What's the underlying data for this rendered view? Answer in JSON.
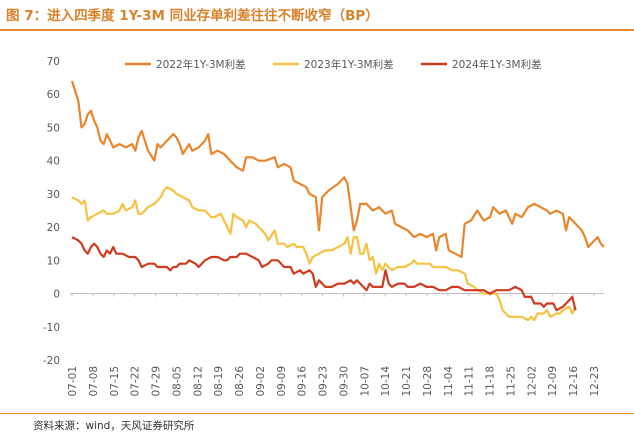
{
  "title": "图 7：进入四季度 1Y-3M 同业存单利差往往不断收窄（BP）",
  "source": "资料来源：wind，天风证券研究所",
  "chart_data": {
    "type": "line",
    "title": "图 7：进入四季度 1Y-3M 同业存单利差往往不断收窄（BP）",
    "xlabel": "",
    "ylabel": "",
    "ylim": [
      -20,
      70
    ],
    "yticks": [
      -20,
      -10,
      0,
      10,
      20,
      30,
      40,
      50,
      60,
      70
    ],
    "x_tick_labels": [
      "07-01",
      "07-08",
      "07-15",
      "07-22",
      "07-29",
      "08-05",
      "08-12",
      "08-19",
      "08-26",
      "09-02",
      "09-09",
      "09-16",
      "09-23",
      "09-30",
      "10-07",
      "10-14",
      "10-21",
      "10-28",
      "11-04",
      "11-11",
      "11-18",
      "11-25",
      "12-02",
      "12-09",
      "12-16",
      "12-23"
    ],
    "legend_position": "top",
    "grid": false,
    "series": [
      {
        "name": "2022年1Y-3M利差",
        "color": "#e9852b",
        "points": [
          [
            0,
            64
          ],
          [
            2,
            58
          ],
          [
            3,
            50
          ],
          [
            4,
            51
          ],
          [
            5,
            54
          ],
          [
            6,
            55
          ],
          [
            7,
            52
          ],
          [
            8,
            50
          ],
          [
            9,
            46
          ],
          [
            10,
            45
          ],
          [
            11,
            48
          ],
          [
            12,
            46
          ],
          [
            13,
            44
          ],
          [
            15,
            45
          ],
          [
            17,
            44
          ],
          [
            19,
            45
          ],
          [
            20,
            43
          ],
          [
            21,
            47
          ],
          [
            22,
            49
          ],
          [
            24,
            43
          ],
          [
            26,
            40
          ],
          [
            27,
            45
          ],
          [
            28,
            44
          ],
          [
            30,
            46
          ],
          [
            31,
            47
          ],
          [
            32,
            48
          ],
          [
            33,
            47
          ],
          [
            34,
            45
          ],
          [
            35,
            42
          ],
          [
            37,
            45
          ],
          [
            38,
            43
          ],
          [
            40,
            44
          ],
          [
            42,
            46
          ],
          [
            43,
            48
          ],
          [
            44,
            42
          ],
          [
            46,
            43
          ],
          [
            48,
            42
          ],
          [
            50,
            40
          ],
          [
            51,
            39
          ],
          [
            52,
            38
          ],
          [
            54,
            37
          ],
          [
            55,
            41
          ],
          [
            57,
            41
          ],
          [
            59,
            40
          ],
          [
            61,
            40
          ],
          [
            64,
            41
          ],
          [
            65,
            38
          ],
          [
            67,
            39
          ],
          [
            69,
            38
          ],
          [
            70,
            34
          ],
          [
            72,
            33
          ],
          [
            74,
            32
          ],
          [
            75,
            30
          ],
          [
            77,
            29
          ],
          [
            78,
            19
          ],
          [
            79,
            29
          ],
          [
            81,
            31
          ],
          [
            84,
            33
          ],
          [
            86,
            35
          ],
          [
            87,
            33
          ],
          [
            88,
            26
          ],
          [
            89,
            19
          ],
          [
            90,
            22
          ],
          [
            91,
            27
          ],
          [
            93,
            27
          ],
          [
            95,
            25
          ],
          [
            97,
            26
          ],
          [
            99,
            24
          ],
          [
            101,
            25
          ],
          [
            102,
            21
          ],
          [
            104,
            20
          ],
          [
            106,
            19
          ],
          [
            108,
            17
          ],
          [
            110,
            18
          ],
          [
            112,
            17
          ],
          [
            114,
            18
          ],
          [
            115,
            13
          ],
          [
            116,
            17
          ],
          [
            118,
            18
          ],
          [
            119,
            13
          ],
          [
            121,
            12
          ],
          [
            123,
            11
          ],
          [
            124,
            21
          ],
          [
            126,
            22
          ],
          [
            128,
            25
          ],
          [
            130,
            22
          ],
          [
            132,
            23
          ],
          [
            133,
            26
          ],
          [
            135,
            24
          ],
          [
            137,
            25
          ],
          [
            139,
            21
          ],
          [
            140,
            24
          ],
          [
            142,
            23
          ],
          [
            144,
            26
          ],
          [
            146,
            27
          ],
          [
            148,
            26
          ],
          [
            150,
            25
          ],
          [
            151,
            24
          ],
          [
            153,
            25
          ],
          [
            155,
            24
          ],
          [
            156,
            19
          ],
          [
            157,
            23
          ],
          [
            159,
            21
          ],
          [
            161,
            19
          ],
          [
            162,
            17
          ],
          [
            163,
            14
          ],
          [
            164,
            15
          ],
          [
            165,
            16
          ],
          [
            166,
            17
          ],
          [
            167,
            15
          ],
          [
            168,
            14
          ]
        ]
      },
      {
        "name": "2023年1Y-3M利差",
        "color": "#f5c242",
        "points": [
          [
            0,
            29
          ],
          [
            2,
            28
          ],
          [
            3,
            27
          ],
          [
            4,
            28
          ],
          [
            5,
            22
          ],
          [
            6,
            23
          ],
          [
            8,
            24
          ],
          [
            10,
            25
          ],
          [
            11,
            24
          ],
          [
            13,
            24
          ],
          [
            15,
            25
          ],
          [
            16,
            27
          ],
          [
            17,
            25
          ],
          [
            19,
            26
          ],
          [
            20,
            28
          ],
          [
            21,
            24
          ],
          [
            22,
            24
          ],
          [
            24,
            26
          ],
          [
            26,
            27
          ],
          [
            27,
            28
          ],
          [
            28,
            29
          ],
          [
            29,
            31
          ],
          [
            30,
            32
          ],
          [
            32,
            31
          ],
          [
            33,
            30
          ],
          [
            35,
            29
          ],
          [
            37,
            28
          ],
          [
            38,
            26
          ],
          [
            40,
            25
          ],
          [
            42,
            25
          ],
          [
            44,
            23
          ],
          [
            45,
            23
          ],
          [
            47,
            24
          ],
          [
            49,
            20
          ],
          [
            50,
            18
          ],
          [
            51,
            24
          ],
          [
            52,
            23
          ],
          [
            54,
            22
          ],
          [
            55,
            20
          ],
          [
            56,
            22
          ],
          [
            58,
            21
          ],
          [
            59,
            20
          ],
          [
            61,
            18
          ],
          [
            62,
            16
          ],
          [
            64,
            19
          ],
          [
            65,
            15
          ],
          [
            67,
            15
          ],
          [
            68,
            14
          ],
          [
            70,
            15
          ],
          [
            71,
            14
          ],
          [
            73,
            14
          ],
          [
            74,
            12
          ],
          [
            75,
            9
          ],
          [
            76,
            11
          ],
          [
            78,
            12
          ],
          [
            80,
            13
          ],
          [
            82,
            13
          ],
          [
            84,
            14
          ],
          [
            86,
            15
          ],
          [
            87,
            17
          ],
          [
            88,
            12
          ],
          [
            89,
            17
          ],
          [
            90,
            17
          ],
          [
            91,
            12
          ],
          [
            92,
            12
          ],
          [
            93,
            15
          ],
          [
            94,
            10
          ],
          [
            95,
            11
          ],
          [
            96,
            6
          ],
          [
            97,
            9
          ],
          [
            98,
            7
          ],
          [
            99,
            9
          ],
          [
            101,
            7
          ],
          [
            103,
            8
          ],
          [
            105,
            8
          ],
          [
            107,
            9
          ],
          [
            108,
            10
          ],
          [
            109,
            9
          ],
          [
            111,
            9
          ],
          [
            113,
            9
          ],
          [
            114,
            8
          ],
          [
            116,
            8
          ],
          [
            118,
            8
          ],
          [
            120,
            7
          ],
          [
            122,
            7
          ],
          [
            124,
            6
          ],
          [
            125,
            3
          ],
          [
            127,
            2
          ],
          [
            128,
            1
          ],
          [
            130,
            0
          ],
          [
            132,
            0
          ],
          [
            134,
            0
          ],
          [
            135,
            -2
          ],
          [
            136,
            -5
          ],
          [
            138,
            -7
          ],
          [
            140,
            -7
          ],
          [
            142,
            -7
          ],
          [
            144,
            -8
          ],
          [
            145,
            -7
          ],
          [
            146,
            -8
          ],
          [
            147,
            -6
          ],
          [
            149,
            -6
          ],
          [
            150,
            -5
          ],
          [
            151,
            -7
          ],
          [
            153,
            -6
          ],
          [
            154,
            -6
          ],
          [
            155,
            -5
          ],
          [
            157,
            -4
          ],
          [
            158,
            -6
          ],
          [
            159,
            -4
          ]
        ]
      },
      {
        "name": "2024年1Y-3M利差",
        "color": "#cf3b1f",
        "points": [
          [
            0,
            17
          ],
          [
            2,
            16
          ],
          [
            3,
            15
          ],
          [
            4,
            13
          ],
          [
            5,
            12
          ],
          [
            6,
            14
          ],
          [
            7,
            15
          ],
          [
            8,
            14
          ],
          [
            9,
            12
          ],
          [
            10,
            11
          ],
          [
            11,
            13
          ],
          [
            12,
            12
          ],
          [
            13,
            14
          ],
          [
            14,
            12
          ],
          [
            16,
            12
          ],
          [
            18,
            11
          ],
          [
            20,
            11
          ],
          [
            21,
            10
          ],
          [
            22,
            8
          ],
          [
            24,
            9
          ],
          [
            26,
            9
          ],
          [
            27,
            8
          ],
          [
            28,
            8
          ],
          [
            30,
            8
          ],
          [
            31,
            7
          ],
          [
            32,
            8
          ],
          [
            33,
            8
          ],
          [
            34,
            9
          ],
          [
            35,
            9
          ],
          [
            36,
            9
          ],
          [
            37,
            10
          ],
          [
            39,
            9
          ],
          [
            40,
            8
          ],
          [
            41,
            9
          ],
          [
            42,
            10
          ],
          [
            44,
            11
          ],
          [
            46,
            11
          ],
          [
            48,
            10
          ],
          [
            49,
            10
          ],
          [
            50,
            11
          ],
          [
            52,
            11
          ],
          [
            53,
            12
          ],
          [
            55,
            12
          ],
          [
            57,
            11
          ],
          [
            59,
            10
          ],
          [
            60,
            8
          ],
          [
            62,
            9
          ],
          [
            63,
            10
          ],
          [
            65,
            10
          ],
          [
            67,
            8
          ],
          [
            69,
            8
          ],
          [
            70,
            6
          ],
          [
            72,
            7
          ],
          [
            73,
            6
          ],
          [
            75,
            7
          ],
          [
            76,
            6
          ],
          [
            77,
            2
          ],
          [
            78,
            4
          ],
          [
            79,
            3
          ],
          [
            80,
            2
          ],
          [
            82,
            2
          ],
          [
            84,
            3
          ],
          [
            86,
            3
          ],
          [
            88,
            4
          ],
          [
            89,
            3
          ],
          [
            90,
            4
          ],
          [
            91,
            3
          ],
          [
            92,
            2
          ],
          [
            93,
            1
          ],
          [
            94,
            3
          ],
          [
            95,
            2
          ],
          [
            96,
            2
          ],
          [
            97,
            2
          ],
          [
            98,
            2
          ],
          [
            99,
            7
          ],
          [
            100,
            3
          ],
          [
            101,
            2
          ],
          [
            103,
            3
          ],
          [
            105,
            3
          ],
          [
            106,
            2
          ],
          [
            108,
            2
          ],
          [
            110,
            3
          ],
          [
            112,
            2
          ],
          [
            114,
            2
          ],
          [
            116,
            1
          ],
          [
            118,
            1
          ],
          [
            120,
            2
          ],
          [
            122,
            2
          ],
          [
            124,
            1
          ],
          [
            126,
            1
          ],
          [
            128,
            1
          ],
          [
            130,
            1
          ],
          [
            132,
            0
          ],
          [
            134,
            1
          ],
          [
            136,
            1
          ],
          [
            138,
            1
          ],
          [
            140,
            2
          ],
          [
            142,
            1
          ],
          [
            143,
            -1
          ],
          [
            145,
            -1
          ],
          [
            146,
            -3
          ],
          [
            148,
            -3
          ],
          [
            149,
            -4
          ],
          [
            150,
            -3
          ],
          [
            151,
            -3
          ],
          [
            152,
            -3
          ],
          [
            153,
            -5
          ],
          [
            155,
            -4
          ],
          [
            156,
            -3
          ],
          [
            157,
            -2
          ],
          [
            158,
            -1
          ],
          [
            159,
            -5
          ]
        ]
      }
    ]
  }
}
